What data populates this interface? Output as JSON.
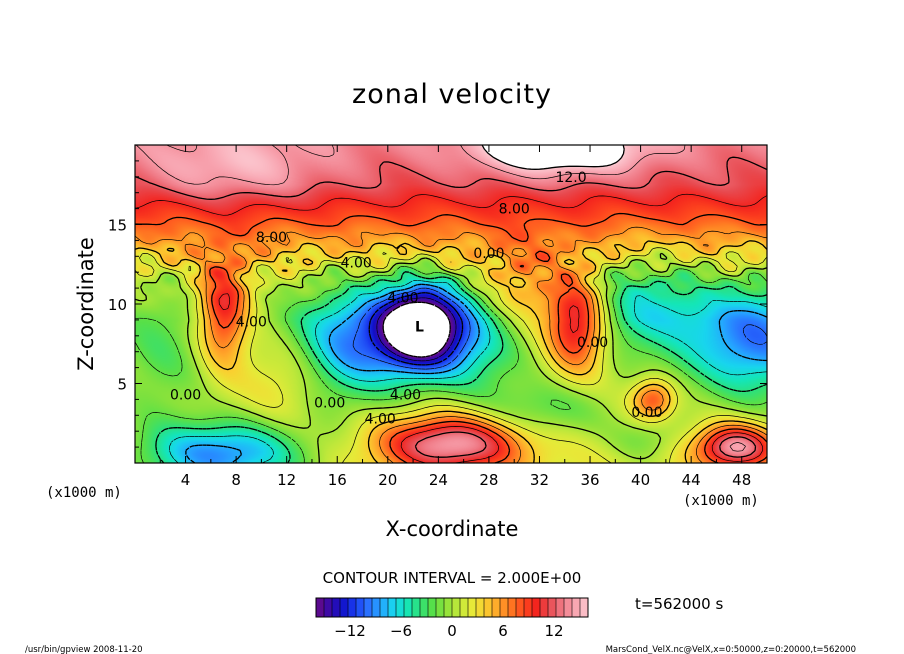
{
  "chart_data": {
    "type": "heatmap",
    "title": "zonal velocity",
    "xlabel": "X-coordinate",
    "ylabel": "Z-coordinate",
    "x_unit": "(x1000 m)",
    "y_unit": "(x1000 m)",
    "xlim": [
      0,
      50
    ],
    "ylim": [
      0,
      20
    ],
    "x_ticks": [
      "4",
      "8",
      "12",
      "16",
      "20",
      "24",
      "28",
      "32",
      "36",
      "40",
      "44",
      "48"
    ],
    "y_ticks": [
      "5",
      "10",
      "15"
    ],
    "contour_interval_text": "CONTOUR INTERVAL = 2.000E+00",
    "contour_interval": 2.0,
    "contour_labels": [
      {
        "text": "12.0",
        "x": 34.5,
        "z": 18.0
      },
      {
        "text": "8.00",
        "x": 30.0,
        "z": 16.0
      },
      {
        "text": "8.00",
        "x": 10.8,
        "z": 14.2
      },
      {
        "text": "4.00",
        "x": 17.5,
        "z": 12.6
      },
      {
        "text": "0.00",
        "x": 28.0,
        "z": 13.2
      },
      {
        "text": "4.00",
        "x": 21.2,
        "z": 10.4
      },
      {
        "text": "4.00",
        "x": 9.2,
        "z": 8.9
      },
      {
        "text": "0.00",
        "x": 36.2,
        "z": 7.6
      },
      {
        "text": "0.00",
        "x": 4.0,
        "z": 4.3
      },
      {
        "text": "0.00",
        "x": 15.4,
        "z": 3.8
      },
      {
        "text": "4.00",
        "x": 21.4,
        "z": 4.3
      },
      {
        "text": "4.00",
        "x": 19.4,
        "z": 2.8
      },
      {
        "text": "0.00",
        "x": 40.5,
        "z": 3.2
      }
    ],
    "colorbar": {
      "min": -16,
      "max": 16,
      "tick_labels": [
        "−12",
        "−6",
        "0",
        "6",
        "12"
      ],
      "tick_values": [
        -12,
        -6,
        0,
        6,
        12
      ],
      "colors": [
        "#6a0a84",
        "#3a0aa8",
        "#1010c8",
        "#1a3cf0",
        "#2a70ff",
        "#25a5ff",
        "#18d5ee",
        "#14e6b8",
        "#2ee07a",
        "#58e048",
        "#8ee23a",
        "#bfe83a",
        "#e6ea38",
        "#fad030",
        "#ffa82a",
        "#ff7a22",
        "#ff4a1e",
        "#f4241e",
        "#e84a50",
        "#f07a86",
        "#f8a4b0",
        "#fcc8d0"
      ]
    },
    "field_features": [
      {
        "kind": "min",
        "x": 22.5,
        "z": 8.6,
        "amp": -18,
        "sx": 2.2,
        "sz": 1.8
      },
      {
        "kind": "min",
        "x": 20.0,
        "z": 8.0,
        "amp": -6,
        "sx": 5.0,
        "sz": 2.5
      },
      {
        "kind": "min",
        "x": 16.5,
        "z": 7.0,
        "amp": -5,
        "sx": 2.8,
        "sz": 2.6
      },
      {
        "kind": "min",
        "x": 27.0,
        "z": 7.8,
        "amp": -5,
        "sx": 2.6,
        "sz": 2.4
      },
      {
        "kind": "min",
        "x": 49.0,
        "z": 7.7,
        "amp": -10,
        "sx": 4.0,
        "sz": 2.6
      },
      {
        "kind": "min",
        "x": 40.0,
        "z": 10.0,
        "amp": -6,
        "sx": 3.5,
        "sz": 2.2
      },
      {
        "kind": "min",
        "x": 32.5,
        "z": 3.3,
        "amp": -4,
        "sx": 3.5,
        "sz": 1.3
      },
      {
        "kind": "min",
        "x": 7.0,
        "z": 0.5,
        "amp": -11,
        "sx": 4.5,
        "sz": 1.5
      },
      {
        "kind": "min",
        "x": 2.0,
        "z": 6.5,
        "amp": -3,
        "sx": 2.5,
        "sz": 3.5
      },
      {
        "kind": "min",
        "x": 40.5,
        "z": 1.5,
        "amp": -3,
        "sx": 2.0,
        "sz": 1.0
      },
      {
        "kind": "max",
        "x": 35.0,
        "z": 8.8,
        "amp": 12,
        "sx": 1.7,
        "sz": 2.1
      },
      {
        "kind": "max",
        "x": 7.0,
        "z": 9.6,
        "amp": 10,
        "sx": 1.4,
        "sz": 2.3
      },
      {
        "kind": "max",
        "x": 25.0,
        "z": 1.2,
        "amp": 13,
        "sx": 4.0,
        "sz": 1.3
      },
      {
        "kind": "max",
        "x": 47.5,
        "z": 1.0,
        "amp": 13,
        "sx": 2.2,
        "sz": 1.0
      },
      {
        "kind": "max",
        "x": 41.0,
        "z": 4.0,
        "amp": 8,
        "sx": 1.2,
        "sz": 0.9
      },
      {
        "kind": "max",
        "x": 30.5,
        "z": 10.8,
        "amp": 5,
        "sx": 2.5,
        "sz": 2.0
      },
      {
        "kind": "max",
        "x": 12.0,
        "z": 5.5,
        "amp": 3,
        "sx": 2.5,
        "sz": 2.0
      },
      {
        "kind": "max",
        "x": 33.5,
        "z": 19.7,
        "amp": 7,
        "sx": 4.5,
        "sz": 1.1
      },
      {
        "kind": "max",
        "x": 8.0,
        "z": 18.5,
        "amp": 3,
        "sx": 5.0,
        "sz": 1.5
      }
    ],
    "background_profile": [
      [
        0,
        2
      ],
      [
        5,
        1
      ],
      [
        9,
        0
      ],
      [
        11.5,
        1.5
      ],
      [
        13.5,
        5
      ],
      [
        15.5,
        8.5
      ],
      [
        17.5,
        11.5
      ],
      [
        20,
        13
      ]
    ],
    "min_marker": {
      "label": "L",
      "x": 22.5,
      "z": 8.6
    }
  },
  "time_label": "t=562000 s",
  "footer": {
    "left": "/usr/bin/gpview  2008-11-20",
    "right": "MarsCond_VelX.nc@VelX,x=0:50000,z=0:20000,t=562000"
  }
}
